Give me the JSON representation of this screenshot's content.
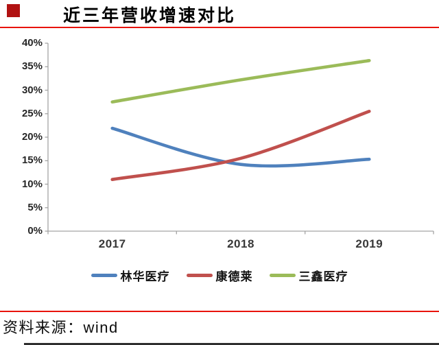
{
  "header": {
    "title": "近三年营收增速对比",
    "bullet_color": "#b11212",
    "accent_color": "#e8130b"
  },
  "footer": {
    "source_label": "资料来源：wind",
    "bottom_bar_color": "#2e2e2e"
  },
  "chart_data": {
    "type": "line",
    "title": "近三年营收增速对比",
    "categories": [
      "2017",
      "2018",
      "2019"
    ],
    "series": [
      {
        "name": "林华医疗",
        "color": "#4f81bd",
        "values": [
          21.9,
          14.2,
          15.3
        ]
      },
      {
        "name": "康德莱",
        "color": "#c0504d",
        "values": [
          11.0,
          15.5,
          25.5
        ]
      },
      {
        "name": "三鑫医疗",
        "color": "#9bbb59",
        "values": [
          27.5,
          32.2,
          36.3
        ]
      }
    ],
    "xlabel": "",
    "ylabel": "",
    "ylim": [
      0,
      40
    ],
    "ytick_step": 5,
    "yticks": [
      "0%",
      "5%",
      "10%",
      "15%",
      "20%",
      "25%",
      "30%",
      "35%",
      "40%"
    ],
    "grid": false,
    "smooth": true,
    "legend_position": "bottom",
    "axis_color": "#a3a3a3",
    "tick_label_color": "#262626"
  }
}
